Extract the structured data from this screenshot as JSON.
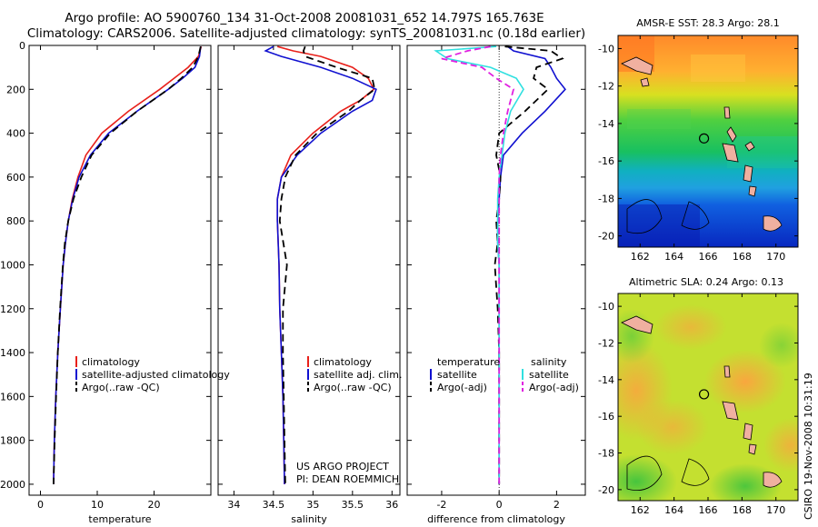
{
  "header": {
    "line1": "Argo profile: AO 5900760_134 31-Oct-2008 20081031_652 14.797S 165.763E",
    "line2": "Climatology: CARS2006. Satellite-adjusted climatology: synTS_20081031.nc (0.18d earlier)"
  },
  "footer": {
    "project": "US ARGO PROJECT",
    "pi": "PI: DEAN ROEMMICH",
    "stamp": "CSIRO 19-Nov-2008 10:31:19"
  },
  "colors": {
    "red": "#e8201a",
    "blue": "#1010d0",
    "black": "#000000",
    "cyan": "#30e0e0",
    "magenta": "#e020e0"
  },
  "chart_data": [
    {
      "type": "line",
      "xlabel": "temperature",
      "ylabel": "",
      "xlim": [
        -2,
        30
      ],
      "ylim": [
        2050,
        0
      ],
      "xticks": [
        "0",
        "10",
        "20"
      ],
      "yticks": [
        "0",
        "200",
        "400",
        "600",
        "800",
        "1000",
        "1200",
        "1400",
        "1600",
        "1800",
        "2000"
      ],
      "depth": [
        5,
        50,
        100,
        150,
        200,
        300,
        400,
        500,
        600,
        700,
        800,
        900,
        1000,
        1200,
        1400,
        1600,
        1800,
        2000
      ],
      "series": [
        {
          "name": "climatology",
          "color": "red",
          "dash": "",
          "values": [
            28.3,
            27.8,
            26,
            23.5,
            21,
            15.5,
            10.8,
            8,
            6.6,
            5.6,
            4.9,
            4.4,
            4,
            3.5,
            3.05,
            2.7,
            2.45,
            2.3
          ]
        },
        {
          "name": "satellite-adjusted climatology",
          "color": "blue",
          "dash": "",
          "values": [
            28.2,
            28,
            27.2,
            25,
            22.5,
            17,
            12,
            8.8,
            6.8,
            5.7,
            4.9,
            4.4,
            4,
            3.5,
            3.05,
            2.7,
            2.45,
            2.3
          ]
        },
        {
          "name": "Argo(..raw -QC)",
          "color": "black",
          "dash": "8,5",
          "values": [
            28.2,
            27.8,
            26.8,
            24.8,
            22.5,
            17,
            12.3,
            9,
            7.2,
            5.8,
            4.9,
            4.3,
            3.95,
            3.45,
            3.05,
            2.75,
            2.5,
            2.3
          ]
        }
      ],
      "legend": [
        "climatology",
        "satellite-adjusted climatology",
        "Argo(..raw -QC)"
      ]
    },
    {
      "type": "line",
      "xlabel": "salinity",
      "ylabel": "",
      "xlim": [
        33.8,
        36.1
      ],
      "ylim": [
        2050,
        0
      ],
      "xticks": [
        "34",
        "34.5",
        "35",
        "35.5",
        "36"
      ],
      "yticks": [],
      "depth": [
        5,
        25,
        50,
        100,
        150,
        200,
        250,
        300,
        400,
        500,
        600,
        700,
        800,
        1000,
        1200,
        1400,
        1600,
        1800,
        2000
      ],
      "series": [
        {
          "name": "climatology",
          "color": "red",
          "dash": "",
          "values": [
            34.55,
            34.75,
            35.1,
            35.5,
            35.7,
            35.77,
            35.6,
            35.35,
            35.0,
            34.72,
            34.6,
            34.55,
            34.55,
            34.57,
            34.58,
            34.6,
            34.62,
            34.63,
            34.64
          ]
        },
        {
          "name": "satellite adj. clim.",
          "color": "blue",
          "dash": "",
          "values": [
            34.5,
            34.4,
            34.6,
            35.1,
            35.5,
            35.8,
            35.75,
            35.5,
            35.1,
            34.8,
            34.6,
            34.55,
            34.55,
            34.57,
            34.58,
            34.6,
            34.62,
            34.63,
            34.64
          ]
        },
        {
          "name": "Argo(..raw -QC)",
          "color": "black",
          "dash": "8,5",
          "values": [
            34.9,
            34.88,
            34.9,
            35.3,
            35.75,
            35.78,
            35.6,
            35.45,
            35.05,
            34.78,
            34.65,
            34.6,
            34.58,
            34.67,
            34.62,
            34.62,
            34.63,
            34.64,
            34.65
          ]
        }
      ],
      "legend": [
        "climatology",
        "satellite adj. clim.",
        "Argo(..raw -QC)"
      ]
    },
    {
      "type": "line",
      "xlabel": "difference from climatology",
      "ylabel": "",
      "xlim": [
        -3.2,
        3.0
      ],
      "ylim": [
        2050,
        0
      ],
      "xticks": [
        "-2",
        "0",
        "2"
      ],
      "yticks": [],
      "depth": [
        5,
        25,
        60,
        100,
        150,
        200,
        300,
        400,
        500,
        600,
        700,
        800,
        900,
        1000,
        1200,
        1400,
        1600,
        1800,
        2000
      ],
      "series": [
        {
          "name": "temperature satellite",
          "color": "blue",
          "dash": "",
          "values": [
            0.3,
            0.5,
            1.6,
            1.8,
            2.0,
            2.3,
            1.6,
            0.8,
            0.15,
            0.05,
            0,
            -0.05,
            -0.05,
            0,
            0,
            0,
            0,
            0,
            0
          ]
        },
        {
          "name": "temperature Argo(-adj)",
          "color": "black",
          "dash": "8,5",
          "values": [
            0.2,
            1.8,
            2.2,
            1.3,
            1.2,
            1.7,
            0.9,
            0.0,
            -0.1,
            0.05,
            0.0,
            -0.1,
            -0.05,
            -0.15,
            -0.05,
            0,
            0,
            0,
            0
          ]
        },
        {
          "name": "salinity satellite",
          "color": "cyan",
          "dash": "",
          "values": [
            -0.1,
            -2.2,
            -1.8,
            -0.3,
            0.6,
            0.85,
            0.4,
            0.2,
            0.1,
            0.0,
            -0.05,
            -0.05,
            -0.05,
            0,
            0,
            0,
            0,
            0,
            0
          ]
        },
        {
          "name": "salinity Argo(-adj)",
          "color": "magenta",
          "dash": "7,4",
          "values": [
            -0.3,
            -1.1,
            -2.0,
            -0.6,
            -0.1,
            0.5,
            0.3,
            0.15,
            0.05,
            0.0,
            0,
            0,
            0,
            0,
            0,
            0,
            0,
            0,
            0
          ]
        }
      ],
      "legend_header": {
        "temperature": "temperature",
        "salinity": "salinity"
      },
      "legend_left": [
        "satellite",
        "Argo(-adj)"
      ],
      "legend_right": [
        "satellite",
        "Argo(-adj)"
      ]
    }
  ],
  "maps": [
    {
      "title": "AMSR-E SST: 28.3 Argo: 28.1",
      "xticks": [
        "162",
        "164",
        "166",
        "168",
        "170"
      ],
      "yticks": [
        "-10",
        "-12",
        "-14",
        "-16",
        "-18",
        "-20"
      ],
      "lonlim": [
        160.7,
        171.3
      ],
      "latlim": [
        -20.6,
        -9.3
      ],
      "marker": {
        "lon": 165.763,
        "lat": -14.797
      }
    },
    {
      "title": "Altimetric SLA: 0.24 Argo: 0.13",
      "xticks": [
        "162",
        "164",
        "166",
        "168",
        "170"
      ],
      "yticks": [
        "-10",
        "-12",
        "-14",
        "-16",
        "-18",
        "-20"
      ],
      "lonlim": [
        160.7,
        171.3
      ],
      "latlim": [
        -20.6,
        -9.3
      ],
      "marker": {
        "lon": 165.763,
        "lat": -14.797
      }
    }
  ]
}
